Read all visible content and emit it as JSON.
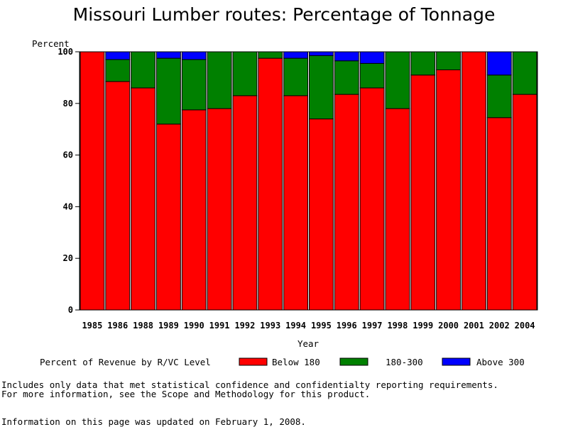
{
  "title": "Missouri Lumber routes: Percentage of Tonnage",
  "legend_title": "Percent of Revenue by R/VC Level",
  "footnote_line1": "Includes only data that met statistical confidence and confidentialty reporting requirements.",
  "footnote_line2": "For more information, see the Scope and Methodology for this product.",
  "updated": "Information on this page was updated on February 1, 2008.",
  "chart_data": {
    "type": "bar",
    "stacked": true,
    "title": "Missouri Lumber routes: Percentage of Tonnage",
    "ylabel": "Percent",
    "xlabel": "Year",
    "ylim": [
      0,
      100
    ],
    "yticks": [
      0,
      20,
      40,
      60,
      80,
      100
    ],
    "categories": [
      "1985",
      "1986",
      "1988",
      "1989",
      "1990",
      "1991",
      "1992",
      "1993",
      "1994",
      "1995",
      "1996",
      "1997",
      "1998",
      "1999",
      "2000",
      "2001",
      "2002",
      "2004"
    ],
    "series": [
      {
        "name": "Below 180",
        "color": "#ff0000",
        "values": [
          100,
          88.5,
          86,
          72,
          77.5,
          78,
          83,
          97.5,
          83,
          74,
          83.5,
          86,
          78,
          91,
          93,
          100,
          74.5,
          83.5
        ]
      },
      {
        "name": "180-300",
        "color": "#008000",
        "values": [
          0,
          8.5,
          14,
          25.5,
          19.5,
          22,
          17,
          2.5,
          14.5,
          24.5,
          13,
          9.5,
          22,
          9,
          7,
          0,
          16.5,
          16.5
        ]
      },
      {
        "name": "Above 300",
        "color": "#0000ff",
        "values": [
          0,
          3,
          0,
          2.5,
          3,
          0,
          0,
          0,
          2.5,
          1.5,
          3.5,
          4.5,
          0,
          0,
          0,
          0,
          9,
          0
        ]
      }
    ],
    "grid": false,
    "legend_position": "bottom"
  }
}
